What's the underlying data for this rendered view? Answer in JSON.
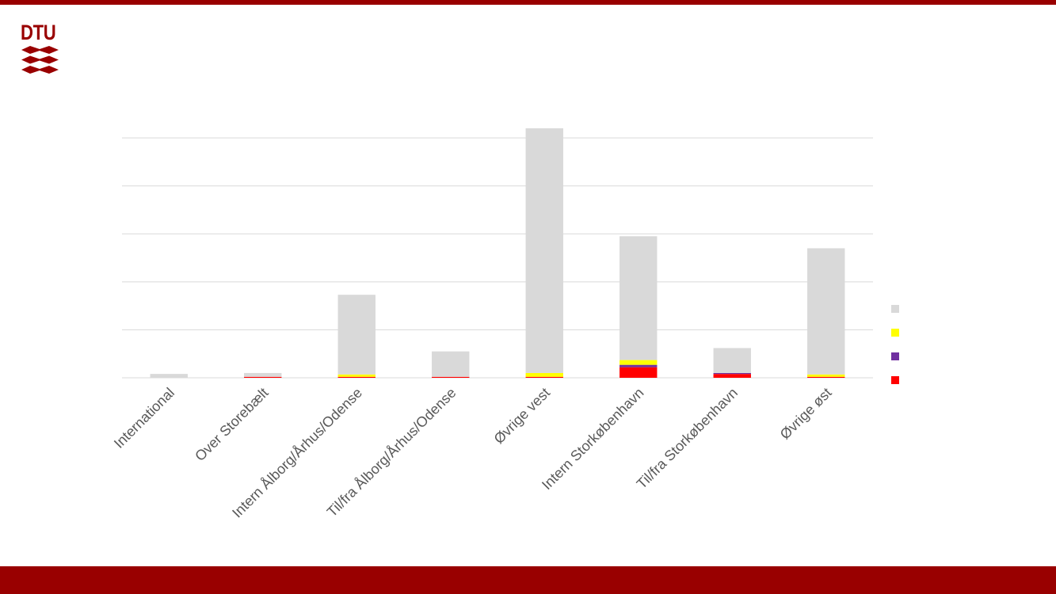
{
  "brand": {
    "logo_text": "DTU",
    "color": "#990000"
  },
  "chart_data": {
    "type": "bar",
    "stacked": true,
    "title": "",
    "xlabel": "",
    "ylabel": "",
    "ylim": [
      0,
      5.2
    ],
    "yticks": [
      0,
      1,
      2,
      3,
      4,
      5
    ],
    "grid": true,
    "legend_position": "right",
    "categories": [
      "International",
      "Over Storebælt",
      "Intern Ålborg/Århus/Odense",
      "Til/fra Ålborg/Århus/Odense",
      "Øvrige vest",
      "Intern Storkøbenhavn",
      "Til/fra Storkøbenhavn",
      "Øvrige øst"
    ],
    "series": [
      {
        "color": "#ff0000",
        "values": [
          0.0,
          0.02,
          0.02,
          0.02,
          0.02,
          0.22,
          0.08,
          0.02
        ]
      },
      {
        "color": "#7030a0",
        "values": [
          0.0,
          0.0,
          0.0,
          0.0,
          0.0,
          0.05,
          0.02,
          0.0
        ]
      },
      {
        "color": "#ffff00",
        "values": [
          0.0,
          0.0,
          0.05,
          0.0,
          0.08,
          0.1,
          0.0,
          0.05
        ]
      },
      {
        "color": "#d9d9d9",
        "values": [
          0.08,
          0.08,
          1.66,
          0.53,
          5.1,
          2.58,
          0.52,
          2.63
        ]
      }
    ]
  }
}
